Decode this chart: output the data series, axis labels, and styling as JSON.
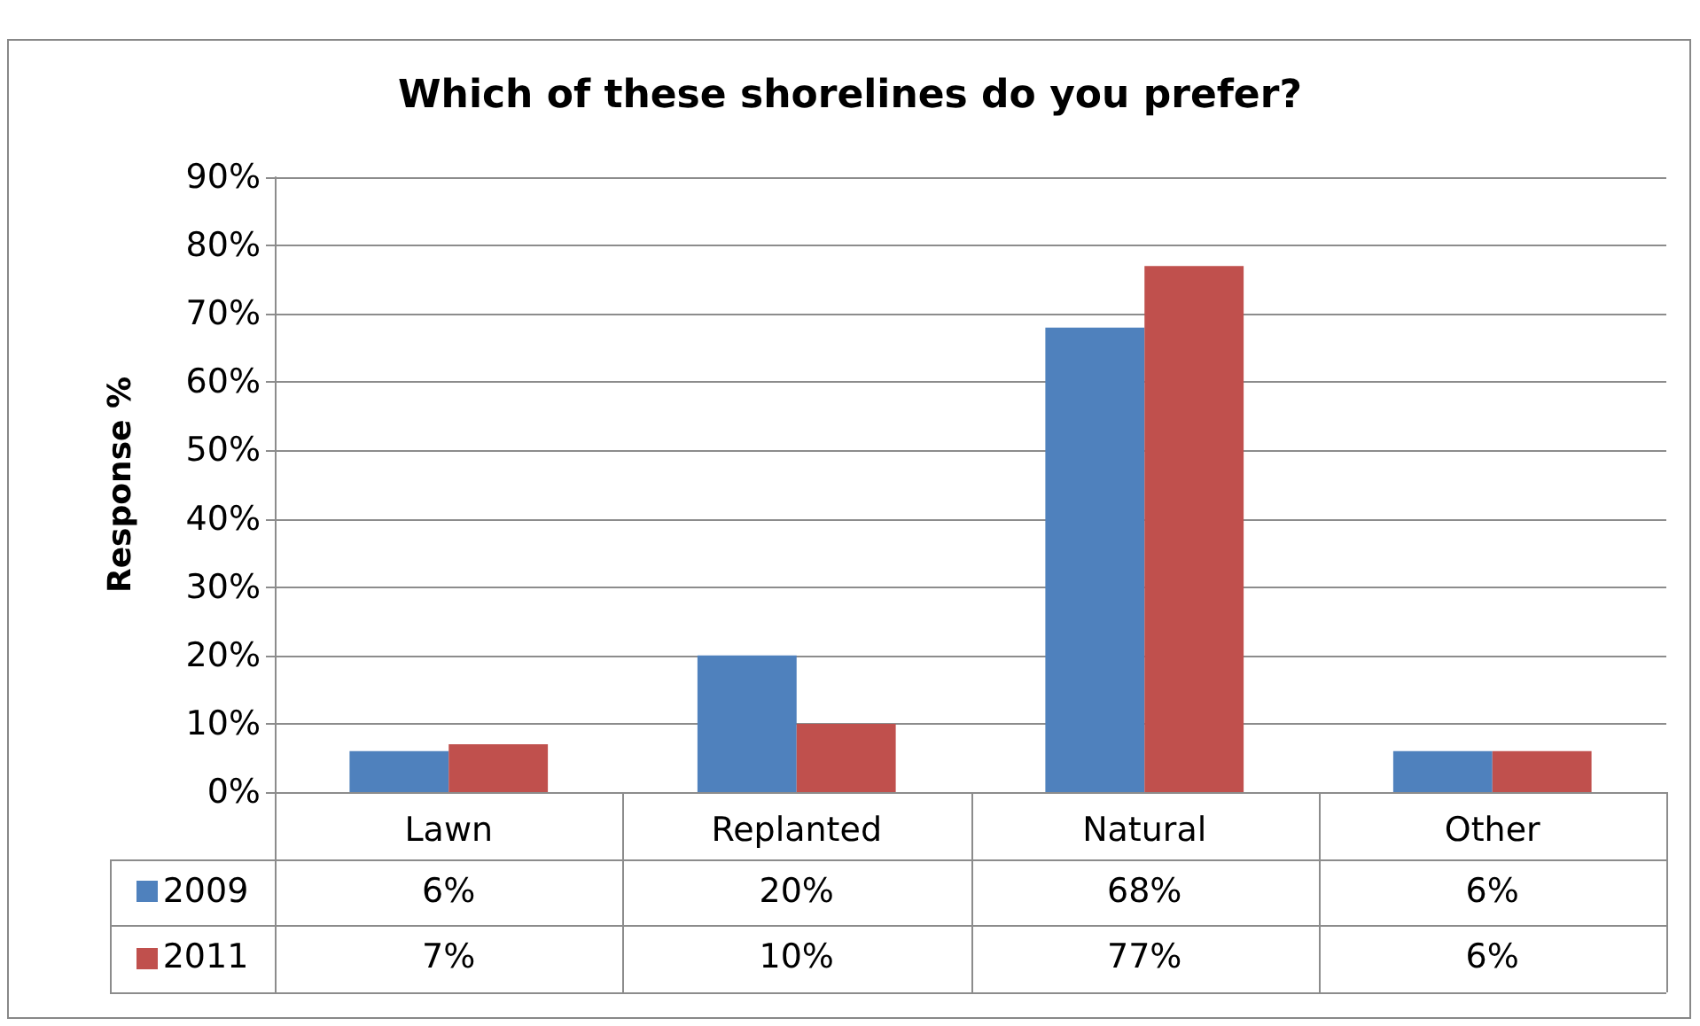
{
  "chart_data": {
    "type": "bar",
    "title": "Which of these shorelines do you prefer?",
    "ylabel": "Response %",
    "categories": [
      "Lawn",
      "Replanted",
      "Natural",
      "Other"
    ],
    "series": [
      {
        "name": "2009",
        "color": "#4f81bd",
        "values": [
          6,
          20,
          68,
          6
        ],
        "value_labels": [
          "6%",
          "20%",
          "68%",
          "6%"
        ]
      },
      {
        "name": "2011",
        "color": "#c0504d",
        "values": [
          7,
          10,
          77,
          6
        ],
        "value_labels": [
          "7%",
          "10%",
          "77%",
          "6%"
        ]
      }
    ],
    "ylim": [
      0,
      90
    ],
    "yticks": [
      {
        "value": 0,
        "label": "0%"
      },
      {
        "value": 10,
        "label": "10%"
      },
      {
        "value": 20,
        "label": "20%"
      },
      {
        "value": 30,
        "label": "30%"
      },
      {
        "value": 40,
        "label": "40%"
      },
      {
        "value": 50,
        "label": "50%"
      },
      {
        "value": 60,
        "label": "60%"
      },
      {
        "value": 70,
        "label": "70%"
      },
      {
        "value": 80,
        "label": "80%"
      },
      {
        "value": 90,
        "label": "90%"
      }
    ],
    "grid": "y",
    "legend": "bottom left"
  }
}
